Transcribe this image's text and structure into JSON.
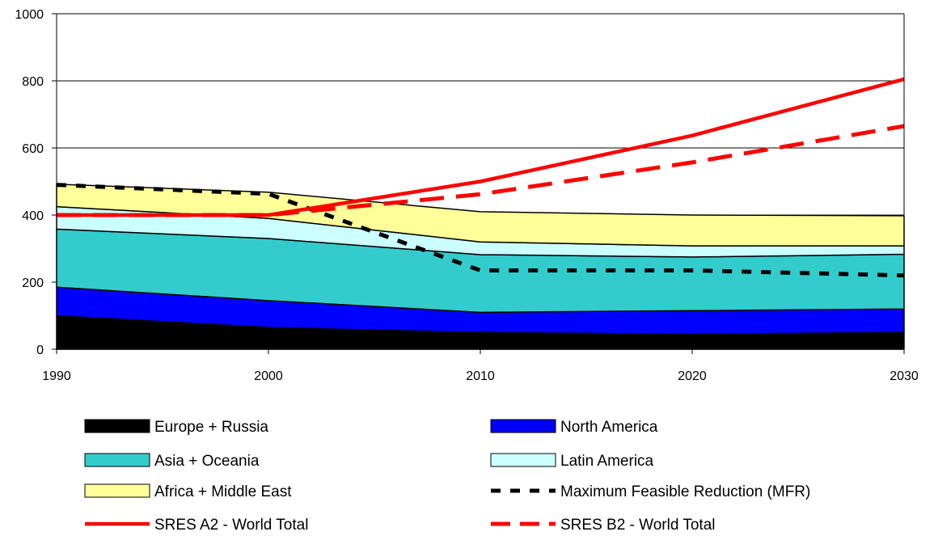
{
  "chart_data": {
    "type": "area",
    "x": [
      1990,
      2000,
      2010,
      2020,
      2030
    ],
    "ylim": [
      0,
      1000
    ],
    "yticks": [
      0,
      200,
      400,
      600,
      800,
      1000
    ],
    "grid": "horizontal",
    "legend_position": "bottom",
    "stacked_series": [
      {
        "name": "Europe + Russia",
        "values": [
          100,
          65,
          50,
          45,
          50
        ],
        "color": "#000000"
      },
      {
        "name": "North America",
        "values": [
          85,
          80,
          60,
          70,
          70
        ],
        "color": "#0000ff"
      },
      {
        "name": "Asia + Oceania",
        "values": [
          173,
          185,
          172,
          160,
          163
        ],
        "color": "#33cccc"
      },
      {
        "name": "Latin America",
        "values": [
          67,
          60,
          38,
          33,
          25
        ],
        "color": "#ccffff"
      },
      {
        "name": "Africa + Middle East",
        "values": [
          67,
          78,
          90,
          92,
          90
        ],
        "color": "#ffff99"
      }
    ],
    "line_series": [
      {
        "name": "Maximum Feasible Reduction (MFR)",
        "values": [
          490,
          463,
          235,
          235,
          220
        ],
        "color": "#000000",
        "style": "dotted"
      },
      {
        "name": "SRES A2 - World Total",
        "values": [
          400,
          400,
          500,
          637,
          805
        ],
        "color": "#ff0000",
        "style": "solid"
      },
      {
        "name": "SRES B2 - World Total",
        "values": [
          400,
          400,
          462,
          557,
          665
        ],
        "color": "#ff0000",
        "style": "dashed"
      }
    ]
  },
  "legend": {
    "items": [
      {
        "label": "Europe + Russia",
        "kind": "box",
        "color": "#000000"
      },
      {
        "label": "North America",
        "kind": "box",
        "color": "#0000ff"
      },
      {
        "label": "Asia + Oceania",
        "kind": "box",
        "color": "#33cccc"
      },
      {
        "label": "Latin America",
        "kind": "box",
        "color": "#ccffff"
      },
      {
        "label": "Africa + Middle East",
        "kind": "box",
        "color": "#ffff99"
      },
      {
        "label": "Maximum Feasible Reduction (MFR)",
        "kind": "dotted",
        "color": "#000000"
      },
      {
        "label": "SRES A2 - World Total",
        "kind": "solid",
        "color": "#ff0000"
      },
      {
        "label": "SRES B2 - World Total",
        "kind": "dashed",
        "color": "#ff0000"
      }
    ]
  }
}
